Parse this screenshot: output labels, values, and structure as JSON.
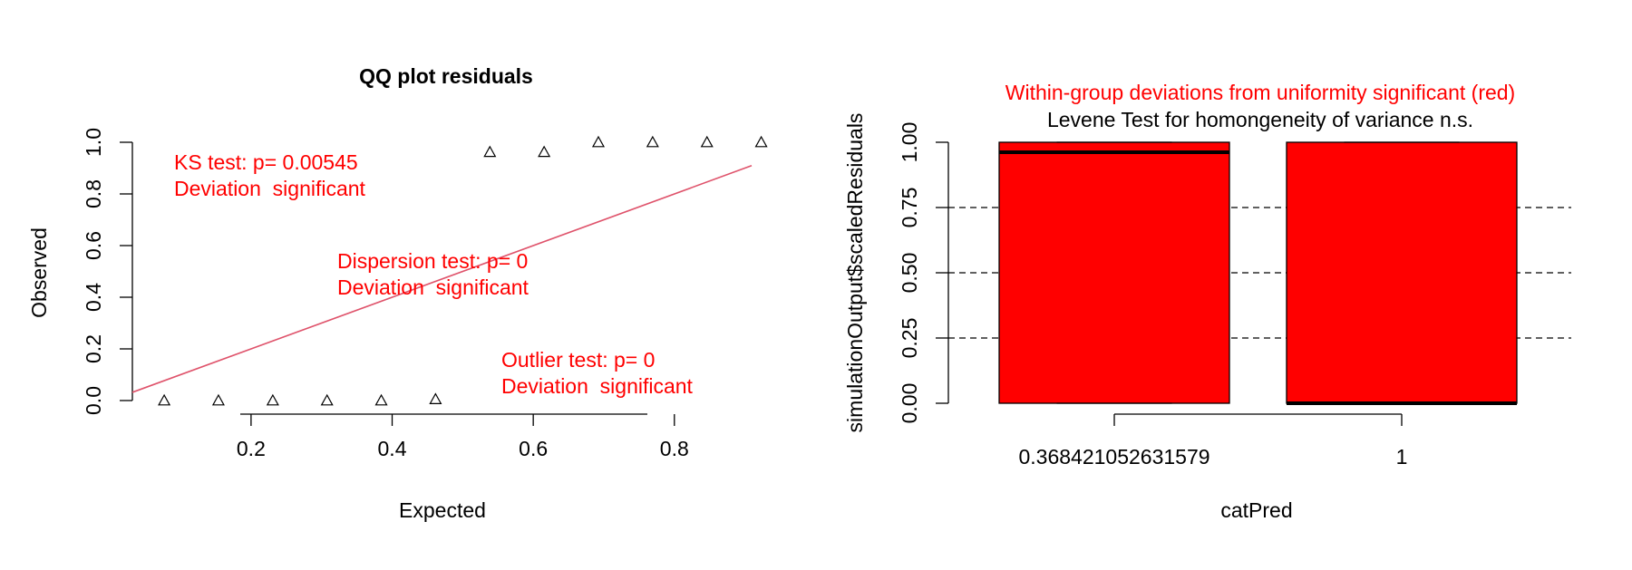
{
  "chart_data": [
    {
      "type": "scatter",
      "title": "QQ plot residuals",
      "xlabel": "Expected",
      "ylabel": "Observed",
      "xticks": [
        0.2,
        0.4,
        0.6,
        0.8
      ],
      "xtick_labels": [
        "0.2",
        "0.4",
        "0.6",
        "0.8"
      ],
      "yticks": [
        0.0,
        0.2,
        0.4,
        0.6,
        0.8,
        1.0
      ],
      "ytick_labels": [
        "0.0",
        "0.2",
        "0.4",
        "0.6",
        "0.8",
        "1.0"
      ],
      "points": [
        {
          "x": 0.0769,
          "y": 0.0
        },
        {
          "x": 0.1538,
          "y": 0.0
        },
        {
          "x": 0.2308,
          "y": 0.0
        },
        {
          "x": 0.3077,
          "y": 0.0
        },
        {
          "x": 0.3846,
          "y": 0.0
        },
        {
          "x": 0.4615,
          "y": 0.005
        },
        {
          "x": 0.5385,
          "y": 0.962
        },
        {
          "x": 0.6154,
          "y": 0.962
        },
        {
          "x": 0.6923,
          "y": 1.0
        },
        {
          "x": 0.7692,
          "y": 1.0
        },
        {
          "x": 0.8462,
          "y": 1.0
        },
        {
          "x": 0.9231,
          "y": 1.0
        }
      ],
      "reference_line": "y = x",
      "reference_line_color": "#DF536B",
      "annotations": [
        {
          "line1": "KS test: p= 0.00545",
          "line2": "Deviation  significant",
          "color": "#FF0000"
        },
        {
          "line1": "Dispersion test: p= 0",
          "line2": "Deviation  significant",
          "color": "#FF0000"
        },
        {
          "line1": "Outlier test: p= 0",
          "line2": "Deviation  significant",
          "color": "#FF0000"
        }
      ]
    },
    {
      "type": "boxplot",
      "title_line1": "Within-group deviations from uniformity significant (red)",
      "title_line1_color": "#FF0000",
      "title_line2": "Levene Test for homongeneity of variance n.s.",
      "xlabel": "catPred",
      "ylabel": "simulationOutput$scaledResiduals",
      "categories": [
        "0.368421052631579",
        "1"
      ],
      "yticks": [
        0.0,
        0.25,
        0.5,
        0.75,
        1.0
      ],
      "ytick_labels": [
        "0.00",
        "0.25",
        "0.50",
        "0.75",
        "1.00"
      ],
      "box_fill": "#FF0000",
      "boxes": [
        {
          "min": 0.0,
          "q1": 0.0,
          "median": 0.962,
          "q3": 1.0,
          "max": 1.0
        },
        {
          "min": 0.0,
          "q1": 0.0,
          "median": 0.0,
          "q3": 1.0,
          "max": 1.0
        }
      ],
      "reference_lines": [
        0.25,
        0.5,
        0.75
      ]
    }
  ]
}
